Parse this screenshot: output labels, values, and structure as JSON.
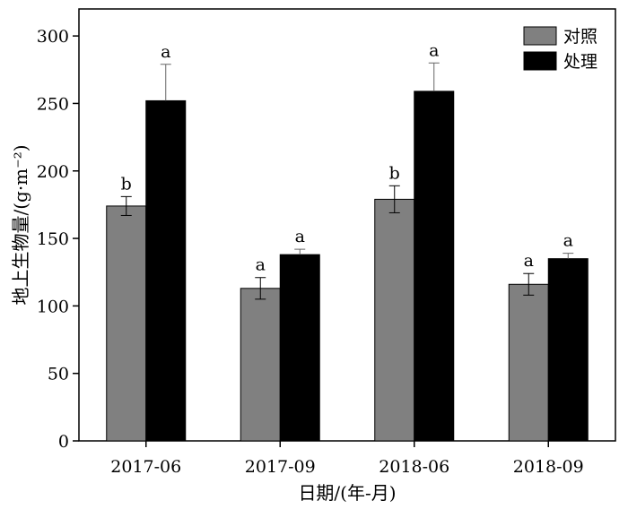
{
  "chart_data": {
    "type": "bar",
    "categories": [
      "2017-06",
      "2017-09",
      "2018-06",
      "2018-09"
    ],
    "xlabel": "日期/(年-月)",
    "ylabel": "地上生物量/(g·m⁻²)",
    "ylim": [
      0,
      320
    ],
    "yticks": [
      0,
      50,
      100,
      150,
      200,
      250,
      300
    ],
    "legend_position": "top-right",
    "series": [
      {
        "name": "对照",
        "color": "#808080",
        "values": [
          174,
          113,
          179,
          116
        ],
        "errors": [
          7,
          8,
          10,
          8
        ],
        "significance": [
          "b",
          "a",
          "b",
          "a"
        ]
      },
      {
        "name": "处理",
        "color": "#000000",
        "values": [
          252,
          138,
          259,
          135
        ],
        "errors": [
          27,
          4,
          21,
          4
        ],
        "significance": [
          "a",
          "a",
          "a",
          "a"
        ]
      }
    ]
  }
}
